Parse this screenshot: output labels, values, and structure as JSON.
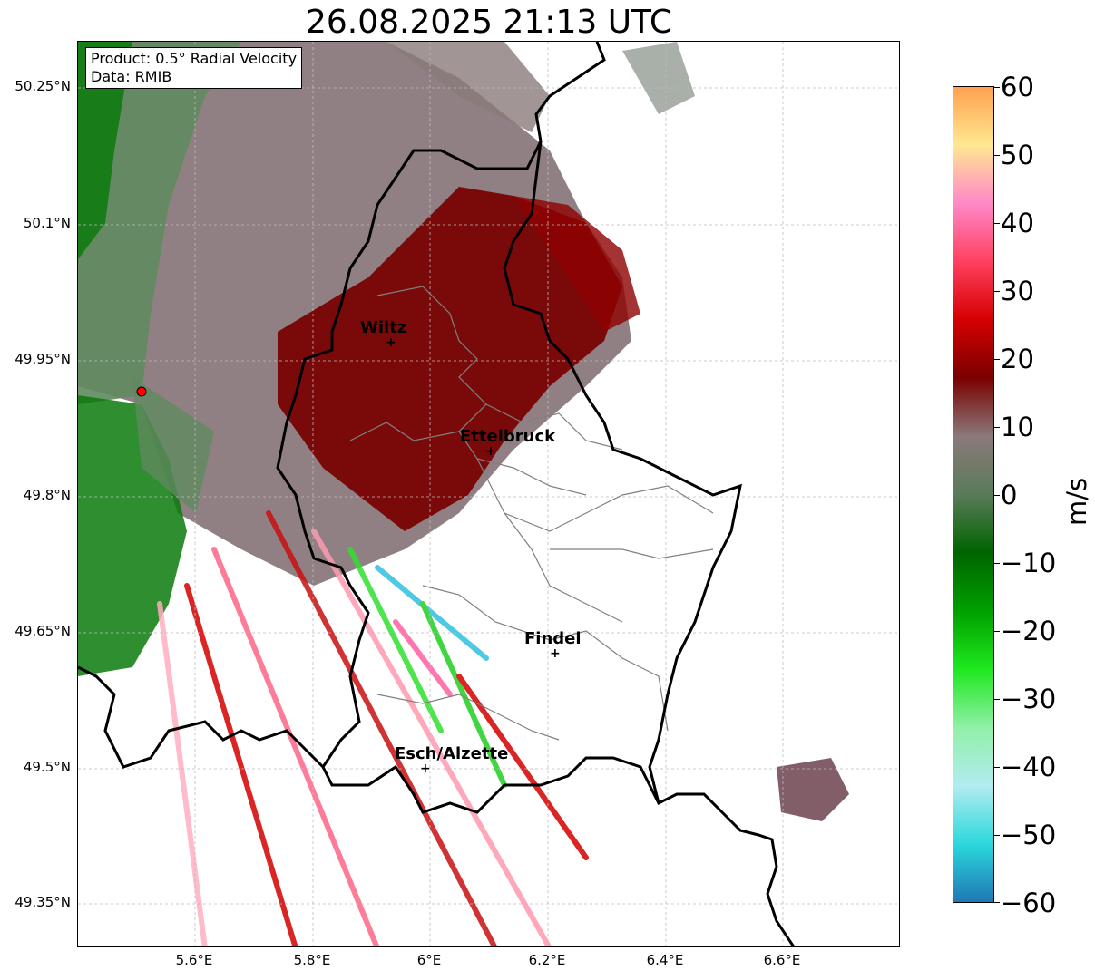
{
  "title": "26.08.2025 21:13 UTC",
  "info": {
    "product": "Product: 0.5° Radial Velocity",
    "data": "Data: RMIB"
  },
  "axes": {
    "lat_ticks": [
      "50.25°N",
      "50.1°N",
      "49.95°N",
      "49.8°N",
      "49.65°N",
      "49.5°N",
      "49.35°N"
    ],
    "lon_ticks": [
      "5.6°E",
      "5.8°E",
      "6°E",
      "6.2°E",
      "6.4°E",
      "6.6°E"
    ],
    "lat_values": [
      50.25,
      50.1,
      49.95,
      49.8,
      49.65,
      49.5,
      49.35
    ],
    "lon_values": [
      5.6,
      5.8,
      6.0,
      6.2,
      6.4,
      6.6
    ],
    "lat_range": [
      49.3,
      50.3
    ],
    "lon_range": [
      5.4,
      6.8
    ],
    "grid": true
  },
  "colorbar": {
    "unit": "m/s",
    "ticks": [
      "60",
      "50",
      "40",
      "30",
      "20",
      "10",
      "0",
      "−10",
      "−20",
      "−30",
      "−40",
      "−50",
      "−60"
    ],
    "range": [
      -60,
      60
    ],
    "stops": [
      "#1f78b4",
      "#2bd8dc",
      "#b2ecf0",
      "#90f0a8",
      "#1ee81e",
      "#00a000",
      "#006400",
      "#5a7a5a",
      "#8a7a7a",
      "#7a0000",
      "#d40000",
      "#ff4060",
      "#ff88c8",
      "#ffe890",
      "#ffa050"
    ]
  },
  "cities": [
    {
      "name": "Wiltz"
    },
    {
      "name": "Ettelbruck"
    },
    {
      "name": "Findel"
    },
    {
      "name": "Esch/Alzette"
    }
  ],
  "colors": {
    "border": "#000000",
    "canton": "#808080",
    "grid": "#bbbbbb",
    "radar_site": "#ff0000"
  }
}
